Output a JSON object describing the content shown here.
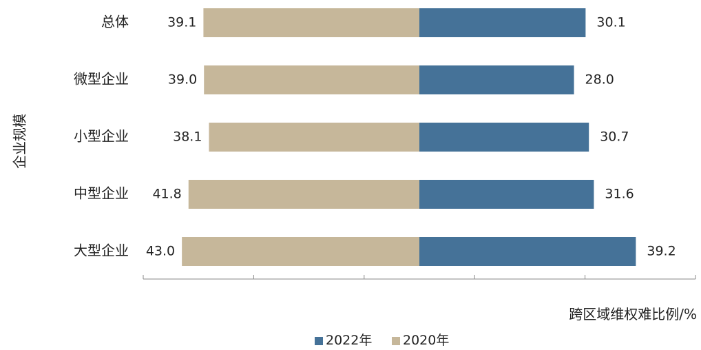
{
  "chart_data": {
    "type": "bar",
    "orientation": "horizontal-diverging",
    "categories": [
      "总体",
      "微型企业",
      "小型企业",
      "中型企业",
      "大型企业"
    ],
    "series": [
      {
        "name": "2022年",
        "values": [
          30.1,
          28.0,
          30.7,
          31.6,
          39.2
        ],
        "color": "#457298",
        "direction": "right"
      },
      {
        "name": "2020年",
        "values": [
          39.1,
          39.0,
          38.1,
          41.8,
          43.0
        ],
        "color": "#c6b79a",
        "direction": "left"
      }
    ],
    "value_labels": {
      "2022年": [
        "30.1",
        "28.0",
        "30.7",
        "31.6",
        "39.2"
      ],
      "2020年": [
        "39.1",
        "39.0",
        "38.1",
        "41.8",
        "43.0"
      ]
    },
    "xlabel": "跨区域维权难比例/%",
    "ylabel": "企业规模",
    "xlim": [
      -50,
      50
    ],
    "xticks": [
      -50,
      -30,
      -10,
      10,
      30,
      50
    ],
    "grid": false,
    "legend_position": "bottom-center"
  }
}
